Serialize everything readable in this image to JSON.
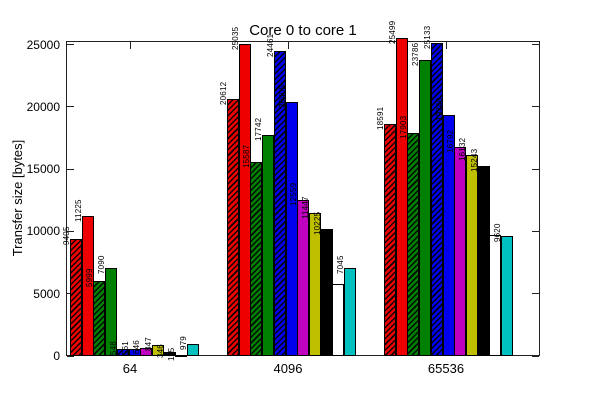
{
  "window": {
    "background": "#ffffff"
  },
  "chart_data": {
    "type": "bar",
    "title": "Core 0 to core 1",
    "xlabel": "",
    "ylabel": "Transfer size [bytes]",
    "categories": [
      "64",
      "4096",
      "65536"
    ],
    "yticks": [
      0,
      5000,
      10000,
      15000,
      20000,
      25000
    ],
    "ylim": [
      0,
      25300
    ],
    "grid": false,
    "legend": "none",
    "bar_labels": "each bar annotated with its value, rotated 90 degrees",
    "series": [
      {
        "name": "red-hatched",
        "color": "#ee0000",
        "hatch": true,
        "values": [
          9405,
          20612,
          18591
        ]
      },
      {
        "name": "red-solid",
        "color": "#ee0000",
        "hatch": false,
        "values": [
          11225,
          25035,
          25499
        ]
      },
      {
        "name": "green-hatched",
        "color": "#008000",
        "hatch": true,
        "values": [
          5999,
          15587,
          17903
        ]
      },
      {
        "name": "green-solid",
        "color": "#008000",
        "hatch": false,
        "values": [
          7090,
          17742,
          23786
        ]
      },
      {
        "name": "blue-hatched",
        "color": "#0000ee",
        "hatch": true,
        "values": [
          548,
          24461,
          25133
        ]
      },
      {
        "name": "blue-solid",
        "color": "#0000ee",
        "hatch": false,
        "values": [
          561,
          20405,
          19348
        ]
      },
      {
        "name": "magenta-solid",
        "color": "#c000c0",
        "hatch": false,
        "values": [
          646,
          12559,
          16792
        ]
      },
      {
        "name": "olive-solid",
        "color": "#bfbf00",
        "hatch": false,
        "values": [
          847,
          11447,
          16132
        ]
      },
      {
        "name": "black-solid",
        "color": "#000000",
        "hatch": false,
        "values": [
          346,
          10225,
          15243
        ]
      },
      {
        "name": "white-solid",
        "color": "#ffffff",
        "hatch": false,
        "values": [
          115,
          5754,
          9733
        ]
      },
      {
        "name": "cyan-solid",
        "color": "#00c0c0",
        "hatch": false,
        "values": [
          979,
          7045,
          9620
        ]
      }
    ]
  }
}
